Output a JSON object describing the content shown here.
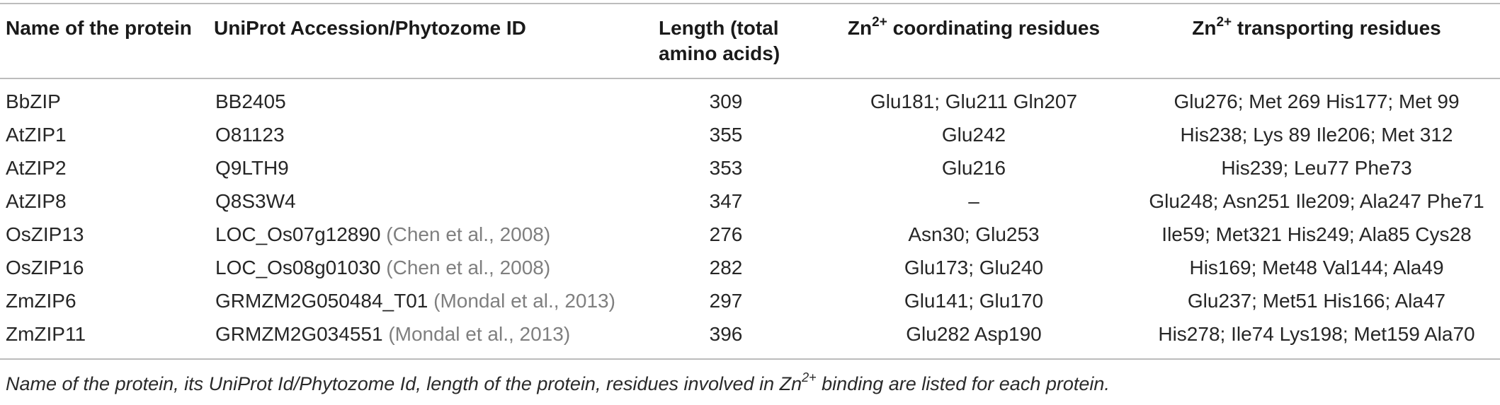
{
  "table": {
    "headers": {
      "name": "Name of the protein",
      "accession": "UniProt Accession/Phytozome ID",
      "length": "Length (total amino acids)",
      "coordinating_pre": "Zn",
      "coordinating_sup": "2+",
      "coordinating_post": " coordinating residues",
      "transporting_pre": "Zn",
      "transporting_sup": "2+",
      "transporting_post": " transporting residues"
    },
    "rows": [
      {
        "name": "BbZIP",
        "accession": "BB2405",
        "citation": "",
        "length": "309",
        "coordinating": "Glu181; Glu211 Gln207",
        "transporting": "Glu276; Met 269 His177; Met 99"
      },
      {
        "name": "AtZIP1",
        "accession": "O81123",
        "citation": "",
        "length": "355",
        "coordinating": "Glu242",
        "transporting": "His238; Lys 89 Ile206; Met 312"
      },
      {
        "name": "AtZIP2",
        "accession": "Q9LTH9",
        "citation": "",
        "length": "353",
        "coordinating": "Glu216",
        "transporting": "His239; Leu77 Phe73"
      },
      {
        "name": "AtZIP8",
        "accession": "Q8S3W4",
        "citation": "",
        "length": "347",
        "coordinating": "–",
        "transporting": "Glu248; Asn251 Ile209; Ala247 Phe71"
      },
      {
        "name": "OsZIP13",
        "accession": "LOC_Os07g12890 ",
        "citation": "(Chen et al., 2008)",
        "length": "276",
        "coordinating": "Asn30; Glu253",
        "transporting": "Ile59; Met321 His249; Ala85 Cys28"
      },
      {
        "name": "OsZIP16",
        "accession": "LOC_Os08g01030 ",
        "citation": "(Chen et al., 2008)",
        "length": "282",
        "coordinating": "Glu173; Glu240",
        "transporting": "His169; Met48 Val144; Ala49"
      },
      {
        "name": "ZmZIP6",
        "accession": "GRMZM2G050484_T01 ",
        "citation": "(Mondal et al., 2013)",
        "length": "297",
        "coordinating": "Glu141; Glu170",
        "transporting": "Glu237; Met51 His166; Ala47"
      },
      {
        "name": "ZmZIP11",
        "accession": "GRMZM2G034551 ",
        "citation": "(Mondal et al., 2013)",
        "length": "396",
        "coordinating": "Glu282 Asp190",
        "transporting": "His278; Ile74 Lys198; Met159 Ala70"
      }
    ]
  },
  "footnote": {
    "pre": "Name of the protein, its UniProt Id/Phytozome Id, length of the protein, residues involved in Zn",
    "sup": "2+",
    "post": " binding are listed for each protein."
  }
}
